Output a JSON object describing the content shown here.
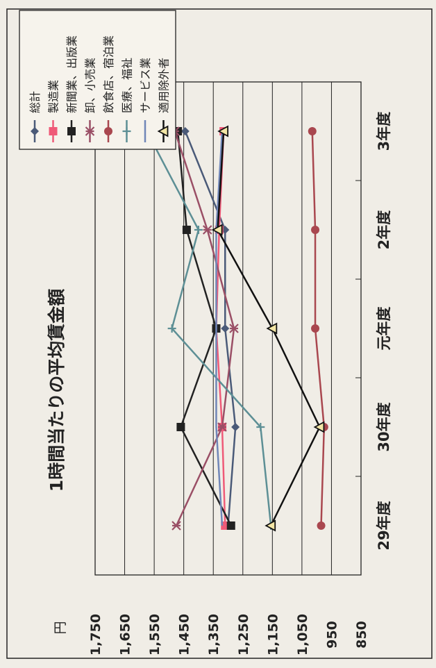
{
  "chart_data": {
    "type": "line",
    "title": "1時間当たりの平均賃金額",
    "unit_label": "円",
    "categories": [
      "29年度",
      "30年度",
      "元年度",
      "2年度",
      "3年度"
    ],
    "ylim": [
      850,
      1750
    ],
    "yticks": [
      "850",
      "950",
      "1,050",
      "1,150",
      "1,250",
      "1,350",
      "1,450",
      "1,550",
      "1,650",
      "1,750"
    ],
    "yticks_values": [
      850,
      950,
      1050,
      1150,
      1250,
      1350,
      1450,
      1550,
      1650,
      1750
    ],
    "grid": true,
    "legend_position": "right",
    "series": [
      {
        "name": "総計",
        "color": "#4a5a78",
        "marker": "diamond",
        "values": [
          1300,
          1275,
          1310,
          1310,
          1445
        ]
      },
      {
        "name": "製造業",
        "color": "#ef5a78",
        "marker": "square",
        "values": [
          1310,
          1320,
          1340,
          1330,
          1315
        ]
      },
      {
        "name": "新聞業、出版業",
        "color": "#222222",
        "marker": "square",
        "values": [
          1290,
          1460,
          1340,
          1440,
          1470
        ]
      },
      {
        "name": "卸、小売業",
        "color": "#9a4f66",
        "marker": "x",
        "values": [
          1475,
          1320,
          1280,
          1370,
          1480
        ]
      },
      {
        "name": "飲食店、宿泊業",
        "color": "#a9474f",
        "marker": "circle",
        "values": [
          985,
          975,
          1005,
          1005,
          1015
        ]
      },
      {
        "name": "医療、福祉",
        "color": "#5d8f95",
        "marker": "plus",
        "values": [
          1155,
          1190,
          1490,
          1400,
          1575
        ]
      },
      {
        "name": "サービス業",
        "color": "#7086b8",
        "marker": "none",
        "values": [
          1320,
          1340,
          1340,
          1340,
          1320
        ]
      },
      {
        "name": "適用除外者",
        "color": "#111111",
        "marker": "triangle",
        "values": [
          1155,
          990,
          1150,
          1335,
          1315
        ]
      }
    ]
  }
}
